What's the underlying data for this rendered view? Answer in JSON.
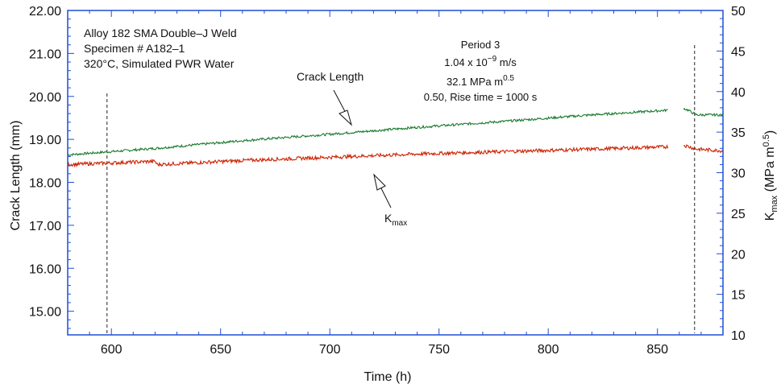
{
  "chart_data": {
    "type": "line",
    "xlabel": "Time (h)",
    "ylabel_left": "Crack Length (mm)",
    "ylabel_right": {
      "base": "K",
      "sub": "max",
      "rest": " (MPa m",
      "sup": "0.5",
      "close": ")"
    },
    "xlim": [
      580,
      880
    ],
    "ylim_left": [
      14.45,
      22.0
    ],
    "ylim_right": [
      10,
      50
    ],
    "x_ticks": [
      600,
      650,
      700,
      750,
      800,
      850
    ],
    "y_left_ticks": [
      "15.00",
      "16.00",
      "17.00",
      "18.00",
      "19.00",
      "20.00",
      "21.00",
      "22.00"
    ],
    "y_right_ticks": [
      10,
      15,
      20,
      25,
      30,
      35,
      40,
      45,
      50
    ],
    "vlines": [
      598,
      867
    ],
    "series": [
      {
        "name": "Crack Length",
        "axis": "left",
        "color": "#1a7a2e",
        "segments": [
          {
            "x": [
              580,
              620,
              660,
              700,
              740,
              780,
              820,
              855
            ],
            "y": [
              18.64,
              18.79,
              18.97,
              19.12,
              19.28,
              19.42,
              19.57,
              19.68
            ]
          },
          {
            "x": [
              862,
              864,
              866,
              868,
              880
            ],
            "y": [
              19.72,
              19.68,
              19.62,
              19.57,
              19.57
            ]
          }
        ]
      },
      {
        "name": "Kmax",
        "axis": "right",
        "color": "#cc2200",
        "segments": [
          {
            "x": [
              580,
              620,
              621,
              660,
              700,
              740,
              780,
              820,
              855
            ],
            "y": [
              31.0,
              31.4,
              31.0,
              31.5,
              31.9,
              32.3,
              32.6,
              32.9,
              33.2
            ]
          },
          {
            "x": [
              862,
              868,
              880
            ],
            "y": [
              33.4,
              32.9,
              32.7
            ]
          }
        ]
      }
    ],
    "legend_box": {
      "line1": "Alloy 182 SMA Double–J Weld",
      "line2": "Specimen # A182–1",
      "line3": "320°C, Simulated PWR Water"
    },
    "period_box": {
      "line1": "Period 3",
      "rate_prefix": "1.04 x 10",
      "rate_exp": "−9",
      "rate_suffix": " m/s",
      "k_prefix": "32.1 MPa m",
      "k_exp": "0.5",
      "line4": "0.50,   Rise time = 1000 s"
    },
    "labels": {
      "crack_length": "Crack Length",
      "kmax_base": "K",
      "kmax_sub": "max"
    }
  }
}
